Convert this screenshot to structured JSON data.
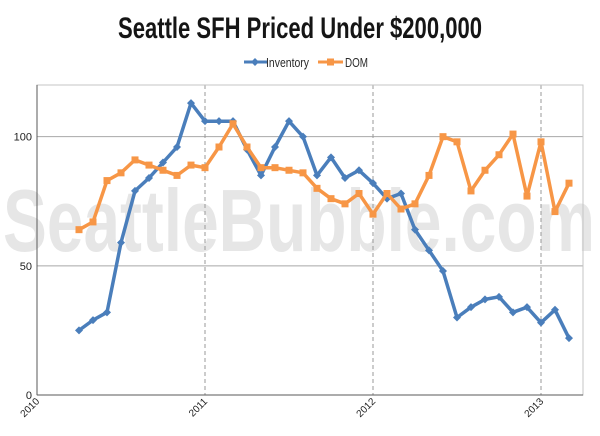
{
  "chart_data": {
    "type": "line",
    "title": "Seattle SFH Priced Under $200,000",
    "x": [
      "2010-04",
      "2010-05",
      "2010-06",
      "2010-07",
      "2010-08",
      "2010-09",
      "2010-10",
      "2010-11",
      "2010-12",
      "2011-01",
      "2011-02",
      "2011-03",
      "2011-04",
      "2011-05",
      "2011-06",
      "2011-07",
      "2011-08",
      "2011-09",
      "2011-10",
      "2011-11",
      "2011-12",
      "2012-01",
      "2012-02",
      "2012-03",
      "2012-04",
      "2012-05",
      "2012-06",
      "2012-07",
      "2012-08",
      "2012-09",
      "2012-10",
      "2012-11",
      "2012-12",
      "2013-01",
      "2013-02",
      "2013-03"
    ],
    "xlim": [
      "2010-01",
      "2013-04"
    ],
    "ylim": [
      0,
      120
    ],
    "xticks": [
      "2010",
      "2011",
      "2012",
      "2013"
    ],
    "yticks": [
      0,
      50,
      100
    ],
    "grid": true,
    "legend": "top-center",
    "series": [
      {
        "name": "Inventory",
        "color": "#4a7ebb",
        "marker": "diamond",
        "values": [
          25,
          29,
          32,
          59,
          79,
          84,
          90,
          96,
          113,
          106,
          106,
          106,
          95,
          85,
          96,
          106,
          100,
          85,
          92,
          84,
          87,
          82,
          76,
          78,
          64,
          56,
          48,
          30,
          34,
          37,
          38,
          32,
          34,
          28,
          33,
          22
        ]
      },
      {
        "name": "DOM",
        "color": "#f79646",
        "marker": "square",
        "values": [
          64,
          67,
          83,
          86,
          91,
          89,
          87,
          85,
          89,
          88,
          96,
          105,
          96,
          88,
          88,
          87,
          86,
          80,
          76,
          74,
          78,
          70,
          78,
          72,
          74,
          85,
          100,
          98,
          79,
          87,
          93,
          101,
          77,
          98,
          71,
          82
        ]
      }
    ]
  },
  "watermark": "SeattleBubble.com"
}
